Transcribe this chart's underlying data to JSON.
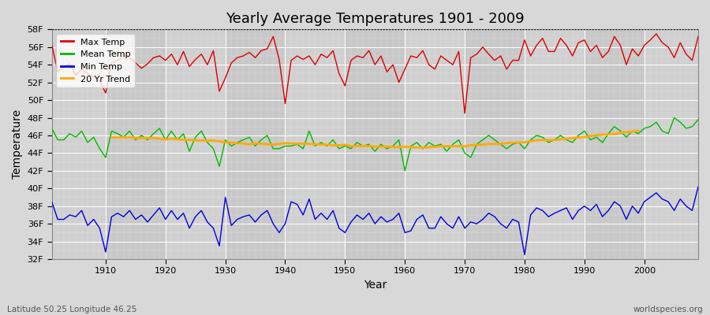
{
  "title": "Yearly Average Temperatures 1901 - 2009",
  "xlabel": "Year",
  "ylabel": "Temperature",
  "bottom_left": "Latitude 50.25 Longitude 46.25",
  "bottom_right": "worldspecies.org",
  "years": [
    1901,
    1902,
    1903,
    1904,
    1905,
    1906,
    1907,
    1908,
    1909,
    1910,
    1911,
    1912,
    1913,
    1914,
    1915,
    1916,
    1917,
    1918,
    1919,
    1920,
    1921,
    1922,
    1923,
    1924,
    1925,
    1926,
    1927,
    1928,
    1929,
    1930,
    1931,
    1932,
    1933,
    1934,
    1935,
    1936,
    1937,
    1938,
    1939,
    1940,
    1941,
    1942,
    1943,
    1944,
    1945,
    1946,
    1947,
    1948,
    1949,
    1950,
    1951,
    1952,
    1953,
    1954,
    1955,
    1956,
    1957,
    1958,
    1959,
    1960,
    1961,
    1962,
    1963,
    1964,
    1965,
    1966,
    1967,
    1968,
    1969,
    1970,
    1971,
    1972,
    1973,
    1974,
    1975,
    1976,
    1977,
    1978,
    1979,
    1980,
    1981,
    1982,
    1983,
    1984,
    1985,
    1986,
    1987,
    1988,
    1989,
    1990,
    1991,
    1992,
    1993,
    1994,
    1995,
    1996,
    1997,
    1998,
    1999,
    2000,
    2001,
    2002,
    2003,
    2004,
    2005,
    2006,
    2007,
    2008,
    2009
  ],
  "max_temp": [
    56.3,
    53.2,
    53.8,
    54.1,
    52.8,
    53.5,
    53.0,
    52.6,
    52.2,
    50.8,
    54.2,
    54.5,
    55.0,
    54.8,
    54.2,
    53.6,
    54.1,
    54.8,
    55.0,
    54.5,
    55.2,
    54.0,
    55.5,
    53.8,
    54.6,
    55.2,
    54.0,
    55.6,
    51.0,
    52.5,
    54.2,
    54.8,
    55.0,
    55.4,
    54.8,
    55.6,
    55.8,
    57.2,
    54.6,
    49.6,
    54.5,
    55.0,
    54.6,
    55.0,
    54.0,
    55.2,
    54.8,
    55.6,
    53.0,
    51.6,
    54.5,
    55.0,
    54.8,
    55.6,
    54.0,
    55.0,
    53.2,
    54.0,
    52.0,
    53.5,
    55.0,
    54.8,
    55.6,
    54.0,
    53.5,
    55.0,
    54.5,
    54.0,
    55.5,
    48.5,
    54.8,
    55.2,
    56.0,
    55.2,
    54.5,
    55.0,
    53.5,
    54.5,
    54.5,
    56.8,
    55.0,
    56.2,
    57.0,
    55.5,
    55.5,
    57.0,
    56.2,
    55.0,
    56.5,
    56.8,
    55.5,
    56.2,
    54.8,
    55.5,
    57.2,
    56.2,
    54.0,
    55.8,
    55.0,
    56.2,
    56.8,
    57.5,
    56.5,
    56.0,
    54.8,
    56.5,
    55.2,
    54.5,
    57.2
  ],
  "mean_temp": [
    46.8,
    45.5,
    45.5,
    46.2,
    45.8,
    46.5,
    45.2,
    45.8,
    44.5,
    43.5,
    46.5,
    46.2,
    45.8,
    46.5,
    45.5,
    46.0,
    45.5,
    46.2,
    46.8,
    45.5,
    46.5,
    45.5,
    46.2,
    44.2,
    45.8,
    46.5,
    45.2,
    44.5,
    42.5,
    45.5,
    44.8,
    45.2,
    45.5,
    45.8,
    44.8,
    45.5,
    46.0,
    44.5,
    44.5,
    44.8,
    44.8,
    45.0,
    44.5,
    46.5,
    44.8,
    45.2,
    44.8,
    45.5,
    44.5,
    44.8,
    44.5,
    45.2,
    44.8,
    45.0,
    44.2,
    45.0,
    44.5,
    44.8,
    45.5,
    42.0,
    44.8,
    45.2,
    44.5,
    45.2,
    44.8,
    45.0,
    44.2,
    45.0,
    45.5,
    44.0,
    43.5,
    45.0,
    45.5,
    46.0,
    45.5,
    45.0,
    44.5,
    45.0,
    45.2,
    44.5,
    45.5,
    46.0,
    45.8,
    45.2,
    45.5,
    46.0,
    45.5,
    45.2,
    46.0,
    46.5,
    45.5,
    45.8,
    45.2,
    46.2,
    47.0,
    46.5,
    45.8,
    46.5,
    46.2,
    46.8,
    47.0,
    47.5,
    46.5,
    46.2,
    48.0,
    47.5,
    46.8,
    47.0,
    47.8
  ],
  "min_temp": [
    38.5,
    36.5,
    36.5,
    37.0,
    36.8,
    37.5,
    35.8,
    36.5,
    35.5,
    32.8,
    36.8,
    37.2,
    36.8,
    37.5,
    36.5,
    37.0,
    36.2,
    37.0,
    37.8,
    36.5,
    37.5,
    36.5,
    37.2,
    35.5,
    36.8,
    37.5,
    36.2,
    35.5,
    33.5,
    39.0,
    35.8,
    36.5,
    36.8,
    37.0,
    36.2,
    37.0,
    37.5,
    36.0,
    35.0,
    36.0,
    38.5,
    38.2,
    37.0,
    38.8,
    36.5,
    37.2,
    36.5,
    37.5,
    35.5,
    35.0,
    36.2,
    37.0,
    36.5,
    37.2,
    36.0,
    36.8,
    36.2,
    36.5,
    37.2,
    35.0,
    35.2,
    36.5,
    37.0,
    35.5,
    35.5,
    36.8,
    36.0,
    35.5,
    36.8,
    35.5,
    36.2,
    36.0,
    36.5,
    37.2,
    36.8,
    36.0,
    35.5,
    36.5,
    36.2,
    32.5,
    37.0,
    37.8,
    37.5,
    36.8,
    37.2,
    37.5,
    37.8,
    36.5,
    37.5,
    38.0,
    37.5,
    38.2,
    36.8,
    37.5,
    38.5,
    38.0,
    36.5,
    38.0,
    37.2,
    38.5,
    39.0,
    39.5,
    38.8,
    38.5,
    37.5,
    38.8,
    38.0,
    37.5,
    40.2
  ],
  "ylim_min": 32,
  "ylim_max": 58,
  "yticks": [
    32,
    34,
    36,
    38,
    40,
    42,
    44,
    46,
    48,
    50,
    52,
    54,
    56,
    58
  ],
  "xticks": [
    1910,
    1920,
    1930,
    1940,
    1950,
    1960,
    1970,
    1980,
    1990,
    2000
  ],
  "xlim_min": 1901,
  "xlim_max": 2009,
  "bg_color": "#d8d8d8",
  "plot_bg_color_light": "#d0d0d0",
  "plot_bg_color_dark": "#c8c8c8",
  "grid_color": "#ffffff",
  "max_color": "#dd0000",
  "mean_color": "#00bb00",
  "min_color": "#0000dd",
  "trend_color": "#ffaa00",
  "trend_lw": 2.0,
  "line_lw": 1.0
}
